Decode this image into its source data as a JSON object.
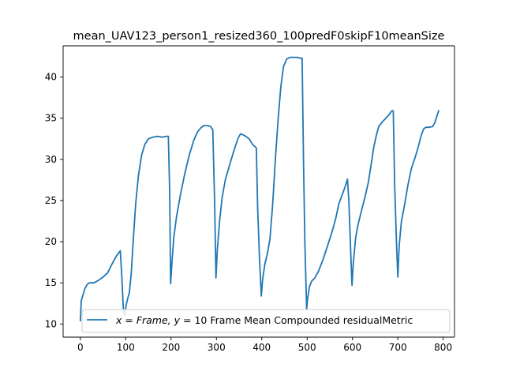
{
  "chart_data": {
    "type": "line",
    "title": "mean_UAV123_person1_resized360_100predF0skipF10meanSize",
    "xlabel": "",
    "ylabel": "",
    "xlim": [
      -38,
      825
    ],
    "ylim": [
      8.4,
      43.8
    ],
    "x_ticks": [
      0,
      100,
      200,
      300,
      400,
      500,
      600,
      700,
      800
    ],
    "y_ticks": [
      10,
      15,
      20,
      25,
      30,
      35,
      40
    ],
    "grid": false,
    "legend_position": "lower-right",
    "line_color": "#1f77b4",
    "series": [
      {
        "name": "$x = Frame$, y = 10 Frame Mean Compounded residualMetric",
        "legend_math": "x = Frame, y",
        "legend_text": " = 10 Frame Mean Compounded residualMetric",
        "points": [
          [
            0,
            10.4
          ],
          [
            2,
            12.8
          ],
          [
            5,
            13.4
          ],
          [
            10,
            14.3
          ],
          [
            15,
            14.8
          ],
          [
            20,
            15.0
          ],
          [
            30,
            15.0
          ],
          [
            40,
            15.3
          ],
          [
            50,
            15.7
          ],
          [
            60,
            16.2
          ],
          [
            70,
            17.3
          ],
          [
            80,
            18.3
          ],
          [
            88,
            18.9
          ],
          [
            91,
            16.2
          ],
          [
            95,
            11.6
          ],
          [
            98,
            11.0
          ],
          [
            101,
            12.3
          ],
          [
            104,
            13.0
          ],
          [
            108,
            13.8
          ],
          [
            112,
            16.0
          ],
          [
            117,
            20.5
          ],
          [
            122,
            24.6
          ],
          [
            128,
            28.0
          ],
          [
            135,
            30.5
          ],
          [
            142,
            31.8
          ],
          [
            150,
            32.5
          ],
          [
            160,
            32.7
          ],
          [
            170,
            32.8
          ],
          [
            180,
            32.7
          ],
          [
            190,
            32.8
          ],
          [
            194,
            32.8
          ],
          [
            197,
            26.0
          ],
          [
            199,
            14.9
          ],
          [
            202,
            17.5
          ],
          [
            206,
            20.5
          ],
          [
            212,
            23.0
          ],
          [
            220,
            25.5
          ],
          [
            230,
            28.2
          ],
          [
            240,
            30.5
          ],
          [
            250,
            32.3
          ],
          [
            258,
            33.3
          ],
          [
            265,
            33.8
          ],
          [
            272,
            34.1
          ],
          [
            280,
            34.1
          ],
          [
            287,
            34.0
          ],
          [
            292,
            33.6
          ],
          [
            296,
            25.0
          ],
          [
            299,
            15.6
          ],
          [
            302,
            19.0
          ],
          [
            307,
            22.5
          ],
          [
            313,
            25.5
          ],
          [
            320,
            27.6
          ],
          [
            330,
            29.5
          ],
          [
            340,
            31.3
          ],
          [
            348,
            32.6
          ],
          [
            353,
            33.1
          ],
          [
            358,
            33.0
          ],
          [
            365,
            32.8
          ],
          [
            372,
            32.5
          ],
          [
            380,
            31.8
          ],
          [
            388,
            31.4
          ],
          [
            391,
            24.0
          ],
          [
            395,
            18.0
          ],
          [
            399,
            13.4
          ],
          [
            402,
            15.5
          ],
          [
            407,
            17.3
          ],
          [
            413,
            18.7
          ],
          [
            418,
            20.3
          ],
          [
            424,
            24.5
          ],
          [
            430,
            30.0
          ],
          [
            436,
            34.8
          ],
          [
            442,
            38.8
          ],
          [
            448,
            41.3
          ],
          [
            455,
            42.2
          ],
          [
            463,
            42.4
          ],
          [
            470,
            42.4
          ],
          [
            478,
            42.4
          ],
          [
            484,
            42.3
          ],
          [
            489,
            42.3
          ],
          [
            492,
            30.0
          ],
          [
            495,
            20.0
          ],
          [
            499,
            11.8
          ],
          [
            501,
            13.0
          ],
          [
            505,
            14.5
          ],
          [
            510,
            15.2
          ],
          [
            517,
            15.6
          ],
          [
            525,
            16.4
          ],
          [
            535,
            17.8
          ],
          [
            545,
            19.5
          ],
          [
            555,
            21.2
          ],
          [
            563,
            22.8
          ],
          [
            570,
            24.6
          ],
          [
            578,
            25.8
          ],
          [
            584,
            26.7
          ],
          [
            589,
            27.6
          ],
          [
            592,
            25.0
          ],
          [
            596,
            19.0
          ],
          [
            599,
            14.7
          ],
          [
            602,
            17.5
          ],
          [
            607,
            20.5
          ],
          [
            612,
            22.0
          ],
          [
            620,
            23.8
          ],
          [
            628,
            25.5
          ],
          [
            635,
            27.2
          ],
          [
            641,
            29.3
          ],
          [
            647,
            31.5
          ],
          [
            653,
            33.0
          ],
          [
            658,
            34.0
          ],
          [
            665,
            34.5
          ],
          [
            672,
            34.9
          ],
          [
            680,
            35.4
          ],
          [
            687,
            35.9
          ],
          [
            690,
            35.9
          ],
          [
            693,
            27.0
          ],
          [
            697,
            20.0
          ],
          [
            700,
            15.7
          ],
          [
            703,
            19.5
          ],
          [
            708,
            22.5
          ],
          [
            715,
            24.5
          ],
          [
            722,
            26.8
          ],
          [
            730,
            28.9
          ],
          [
            738,
            30.2
          ],
          [
            745,
            31.5
          ],
          [
            752,
            33.0
          ],
          [
            757,
            33.7
          ],
          [
            762,
            33.9
          ],
          [
            770,
            33.9
          ],
          [
            777,
            34.0
          ],
          [
            782,
            34.5
          ],
          [
            787,
            35.4
          ],
          [
            790,
            35.9
          ]
        ]
      }
    ]
  }
}
